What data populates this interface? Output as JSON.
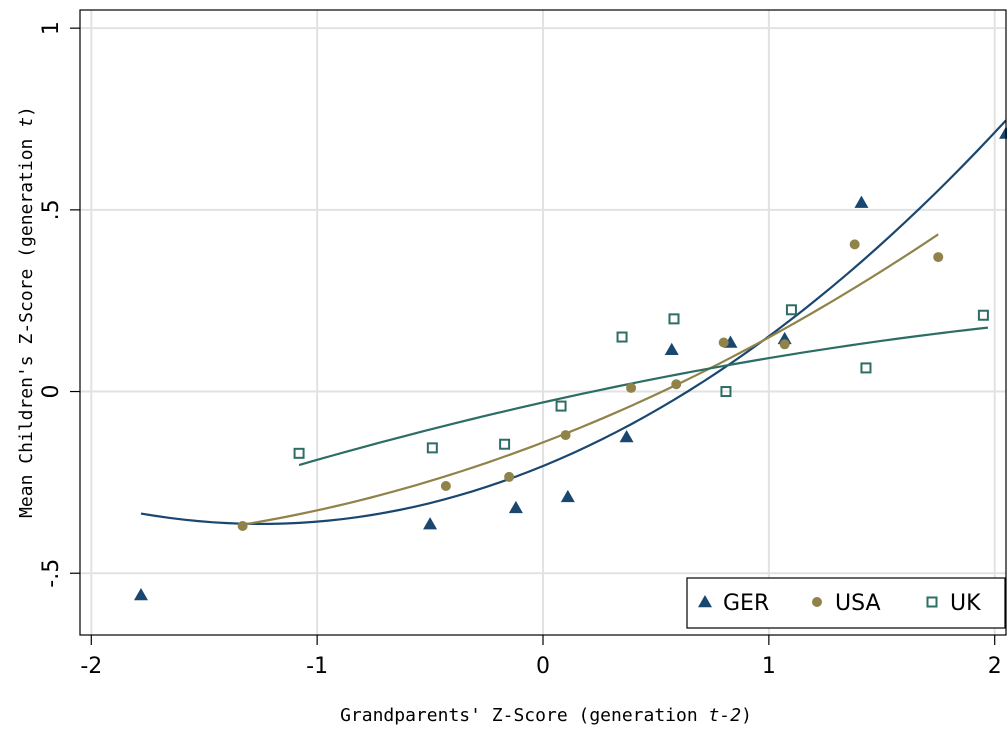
{
  "chart_data": {
    "type": "scatter",
    "xlabel": {
      "prefix": "Grandparents' Z-Score (generation ",
      "italic": "t-2",
      "suffix": ")"
    },
    "ylabel": {
      "prefix": "Mean Children's Z-Score (generation ",
      "italic": "t",
      "suffix": ")"
    },
    "xlim": [
      -2.05,
      2.05
    ],
    "ylim": [
      -0.67,
      1.05
    ],
    "x_ticks": [
      {
        "value": -2,
        "label": "-2"
      },
      {
        "value": -1,
        "label": "-1"
      },
      {
        "value": 0,
        "label": "0"
      },
      {
        "value": 1,
        "label": "1"
      },
      {
        "value": 2,
        "label": "2"
      }
    ],
    "y_ticks": [
      {
        "value": -0.5,
        "label": "-.5"
      },
      {
        "value": 0,
        "label": "0"
      },
      {
        "value": 0.5,
        "label": ".5"
      },
      {
        "value": 1,
        "label": "1"
      }
    ],
    "grid": true,
    "legend_position": "bottom-right",
    "series": [
      {
        "name": "GER",
        "marker": "triangle",
        "color": "#1a476f",
        "points": [
          [
            -1.78,
            -0.56
          ],
          [
            -0.5,
            -0.365
          ],
          [
            -0.12,
            -0.32
          ],
          [
            0.11,
            -0.29
          ],
          [
            0.37,
            -0.125
          ],
          [
            0.57,
            0.115
          ],
          [
            0.83,
            0.135
          ],
          [
            1.07,
            0.145
          ],
          [
            1.41,
            0.52
          ],
          [
            2.05,
            0.71
          ]
        ],
        "fit": {
          "x_range": [
            -1.78,
            2.05
          ],
          "coef": [
            -0.205,
            0.255,
            0.102
          ]
        }
      },
      {
        "name": "USA",
        "marker": "circle",
        "color": "#90834a",
        "points": [
          [
            -1.33,
            -0.37
          ],
          [
            -0.43,
            -0.26
          ],
          [
            -0.15,
            -0.235
          ],
          [
            0.1,
            -0.12
          ],
          [
            0.39,
            0.01
          ],
          [
            0.59,
            0.02
          ],
          [
            0.8,
            0.135
          ],
          [
            1.07,
            0.13
          ],
          [
            1.38,
            0.405
          ],
          [
            1.75,
            0.37
          ]
        ],
        "fit": {
          "x_range": [
            -1.33,
            1.75
          ],
          "coef": [
            -0.14,
            0.238,
            0.051
          ]
        }
      },
      {
        "name": "UK",
        "marker": "square",
        "color": "#2d6d66",
        "points": [
          [
            -1.08,
            -0.17
          ],
          [
            -0.49,
            -0.155
          ],
          [
            -0.17,
            -0.145
          ],
          [
            0.08,
            -0.04
          ],
          [
            0.35,
            0.15
          ],
          [
            0.58,
            0.2
          ],
          [
            0.81,
            0.0
          ],
          [
            1.1,
            0.225
          ],
          [
            1.43,
            0.065
          ],
          [
            1.95,
            0.21
          ]
        ],
        "fit": {
          "x_range": [
            -1.08,
            1.97
          ],
          "coef": [
            -0.03,
            0.14,
            -0.018
          ]
        }
      }
    ]
  }
}
